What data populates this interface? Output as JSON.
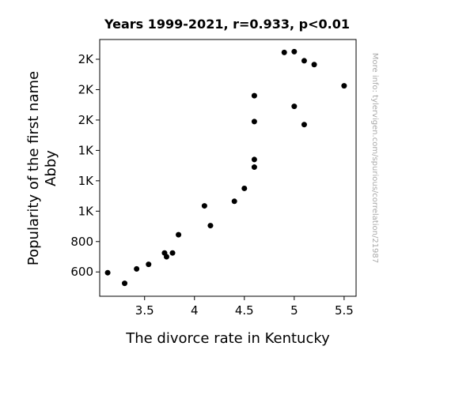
{
  "chart_data": {
    "type": "scatter",
    "title": "Years 1999-2021, r=0.933, p<0.01",
    "xlabel": "The divorce rate in Kentucky",
    "ylabel_lines": [
      "Popularity of the first name",
      "Abby"
    ],
    "watermark": "More info: tylervigen.com/spurious/correlation/21987",
    "xlim": [
      3.05,
      5.62
    ],
    "ylim": [
      440,
      2130
    ],
    "x_ticks": [
      {
        "value": 3.5,
        "label": "3.5"
      },
      {
        "value": 4.0,
        "label": "4"
      },
      {
        "value": 4.5,
        "label": "4.5"
      },
      {
        "value": 5.0,
        "label": "5"
      },
      {
        "value": 5.5,
        "label": "5.5"
      }
    ],
    "y_ticks": [
      {
        "value": 600,
        "label": "600"
      },
      {
        "value": 800,
        "label": "800"
      },
      {
        "value": 1000,
        "label": "1K"
      },
      {
        "value": 1200,
        "label": "1K"
      },
      {
        "value": 1400,
        "label": "1K"
      },
      {
        "value": 1600,
        "label": "2K"
      },
      {
        "value": 1800,
        "label": "2K"
      },
      {
        "value": 2000,
        "label": "2K"
      }
    ],
    "marker_color": "#000000",
    "points": [
      {
        "x": 3.13,
        "y": 595
      },
      {
        "x": 3.3,
        "y": 525
      },
      {
        "x": 3.42,
        "y": 620
      },
      {
        "x": 3.54,
        "y": 650
      },
      {
        "x": 3.7,
        "y": 725
      },
      {
        "x": 3.72,
        "y": 700
      },
      {
        "x": 3.78,
        "y": 725
      },
      {
        "x": 3.84,
        "y": 845
      },
      {
        "x": 4.1,
        "y": 1035
      },
      {
        "x": 4.16,
        "y": 905
      },
      {
        "x": 4.4,
        "y": 1065
      },
      {
        "x": 4.5,
        "y": 1150
      },
      {
        "x": 4.6,
        "y": 1290
      },
      {
        "x": 4.6,
        "y": 1340
      },
      {
        "x": 4.6,
        "y": 1590
      },
      {
        "x": 4.6,
        "y": 1760
      },
      {
        "x": 4.9,
        "y": 2045
      },
      {
        "x": 5.0,
        "y": 2050
      },
      {
        "x": 5.0,
        "y": 1690
      },
      {
        "x": 5.1,
        "y": 1990
      },
      {
        "x": 5.1,
        "y": 1570
      },
      {
        "x": 5.2,
        "y": 1965
      },
      {
        "x": 5.5,
        "y": 1825
      }
    ]
  }
}
